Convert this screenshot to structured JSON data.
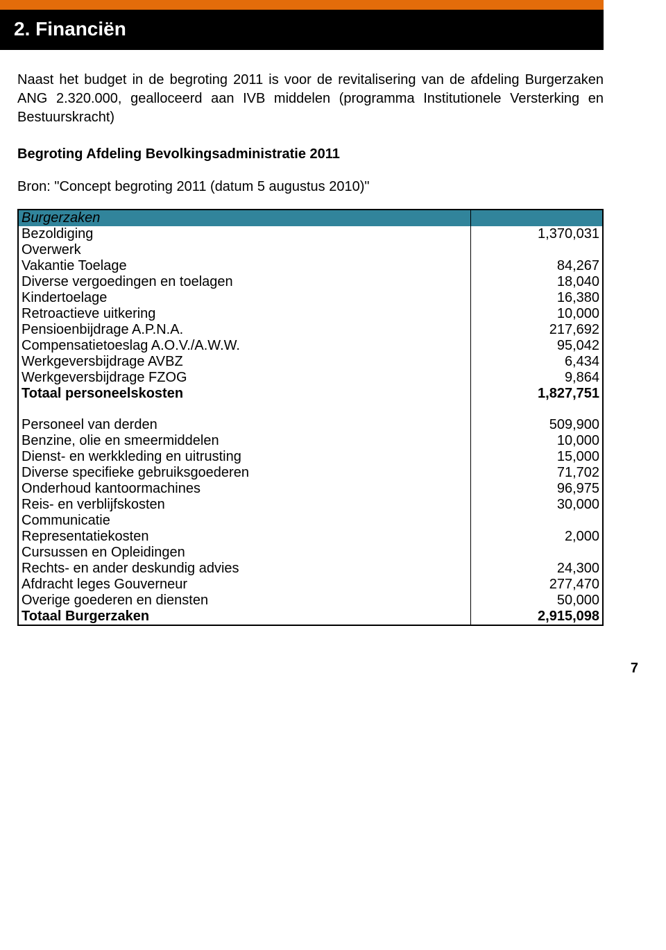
{
  "accent_bar_color": "#e36c0a",
  "title_bg": "#000000",
  "title_color": "#ffffff",
  "table_header_bg": "#31849b",
  "border_color": "#000000",
  "title": "2. Financiën",
  "intro": "Naast het budget in de begroting 2011 is voor de revitalisering van de afdeling Burgerzaken ANG 2.320.000, gealloceerd aan IVB middelen (programma Institutionele Versterking en Bestuurskracht)",
  "subheading": "Begroting Afdeling Bevolkingsadministratie 2011",
  "source": "Bron: \"Concept begroting 2011 (datum 5 augustus 2010)\"",
  "table_header": "Burgerzaken",
  "section1": [
    {
      "label": "Bezoldiging",
      "value": "1,370,031"
    },
    {
      "label": "Overwerk",
      "value": ""
    },
    {
      "label": "Vakantie Toelage",
      "value": "84,267"
    },
    {
      "label": "Diverse vergoedingen en toelagen",
      "value": "18,040"
    },
    {
      "label": "Kindertoelage",
      "value": "16,380"
    },
    {
      "label": "Retroactieve uitkering",
      "value": "10,000"
    },
    {
      "label": "Pensioenbijdrage A.P.N.A.",
      "value": "217,692"
    },
    {
      "label": "Compensatietoeslag A.O.V./A.W.W.",
      "value": "95,042"
    },
    {
      "label": "Werkgeversbijdrage AVBZ",
      "value": "6,434"
    },
    {
      "label": "Werkgeversbijdrage FZOG",
      "value": "9,864"
    }
  ],
  "section1_total": {
    "label": "Totaal personeelskosten",
    "value": "1,827,751"
  },
  "section2": [
    {
      "label": "Personeel van derden",
      "value": "509,900"
    },
    {
      "label": "Benzine, olie en smeermiddelen",
      "value": "10,000"
    },
    {
      "label": "Dienst- en werkkleding en uitrusting",
      "value": "15,000"
    },
    {
      "label": "Diverse specifieke gebruiksgoederen",
      "value": "71,702"
    },
    {
      "label": "Onderhoud kantoormachines",
      "value": "96,975"
    },
    {
      "label": "Reis- en verblijfskosten",
      "value": "30,000"
    },
    {
      "label": "Communicatie",
      "value": ""
    },
    {
      "label": "Representatiekosten",
      "value": "2,000"
    },
    {
      "label": "Cursussen en Opleidingen",
      "value": ""
    },
    {
      "label": "Rechts- en ander deskundig advies",
      "value": "24,300"
    },
    {
      "label": "Afdracht leges Gouverneur",
      "value": "277,470"
    },
    {
      "label": "Overige goederen en diensten",
      "value": "50,000"
    }
  ],
  "section2_total": {
    "label": "Totaal Burgerzaken",
    "value": "2,915,098"
  },
  "page_number": "7"
}
